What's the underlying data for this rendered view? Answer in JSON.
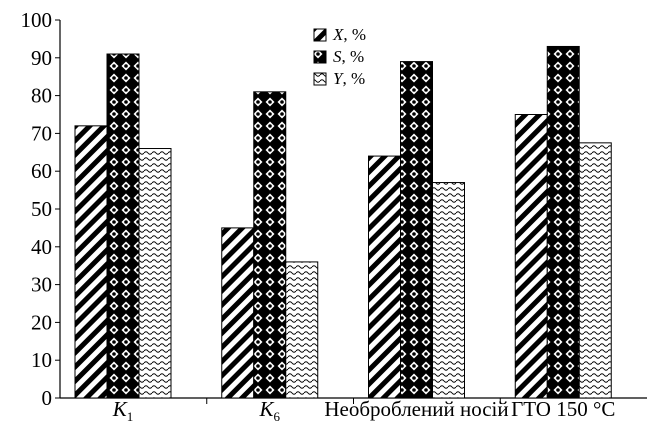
{
  "chart_data": {
    "type": "bar",
    "categories": [
      {
        "base": "K",
        "sub": "1"
      },
      {
        "base": "K",
        "sub": "6"
      },
      {
        "base": "Необроблений носій",
        "sub": ""
      },
      {
        "base": "ГТО 150 °С",
        "sub": ""
      }
    ],
    "series": [
      {
        "name": "X",
        "unit": ", %",
        "pattern": "hatch",
        "values": [
          72,
          45,
          64,
          75
        ]
      },
      {
        "name": "S",
        "unit": ", %",
        "pattern": "dots",
        "values": [
          91,
          81,
          89,
          93
        ]
      },
      {
        "name": "Y",
        "unit": ", %",
        "pattern": "waves",
        "values": [
          66,
          36,
          57,
          67.5
        ]
      }
    ],
    "yticks": [
      0,
      10,
      20,
      30,
      40,
      50,
      60,
      70,
      80,
      90,
      100
    ],
    "ylim": [
      0,
      100
    ],
    "grid": false,
    "legend_position": "top-center",
    "title": "",
    "xlabel": "",
    "ylabel": "",
    "colors": {
      "ink": "#000000",
      "background": "#ffffff"
    }
  }
}
